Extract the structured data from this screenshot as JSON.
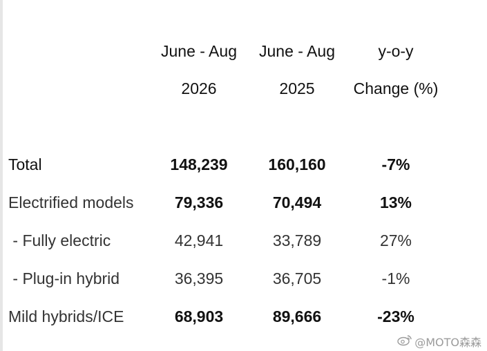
{
  "header": {
    "col1_line1": "June - Aug",
    "col1_line2": "2026",
    "col2_line1": "June - Aug",
    "col2_line2": "2025",
    "col3_line1": "y-o-y",
    "col3_line2": "Change (%)"
  },
  "rows": [
    {
      "label": "Total",
      "v2026": "148,239",
      "v2025": "160,160",
      "change": "-7%"
    },
    {
      "label": "Electrified models",
      "v2026": "79,336",
      "v2025": "70,494",
      "change": "13%"
    },
    {
      "label": " - Fully electric",
      "v2026": "42,941",
      "v2025": "33,789",
      "change": "27%"
    },
    {
      "label": " - Plug-in hybrid",
      "v2026": "36,395",
      "v2025": "36,705",
      "change": "-1%"
    },
    {
      "label": "Mild hybrids/ICE",
      "v2026": "68,903",
      "v2025": "89,666",
      "change": "-23%"
    }
  ],
  "watermark": {
    "text": "@MOTO森森",
    "icon": "weibo-icon"
  }
}
